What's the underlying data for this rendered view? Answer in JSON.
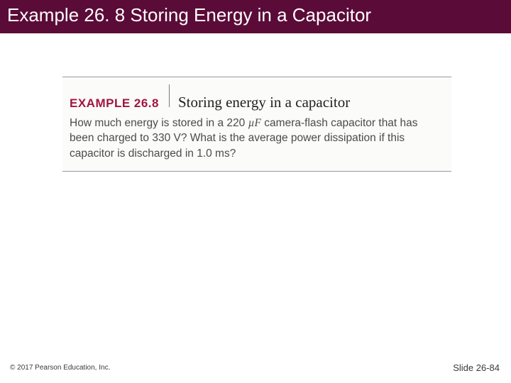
{
  "colors": {
    "title_bg": "#5b0b37",
    "title_fg": "#ffffff",
    "box_border": "#9a9a9a",
    "example_label": "#a0163f",
    "example_title": "#222222",
    "body_text": "#4b4b4b",
    "footer": "#3a3a3a"
  },
  "title": "Example 26. 8 Storing Energy in a Capacitor",
  "example": {
    "label": "EXAMPLE 26.8",
    "title": "Storing energy in a capacitor",
    "body_pre": "How much energy is stored in a 220 ",
    "body_unit": "µF",
    "body_post": " camera-flash capacitor that has been charged to 330 V? What is the average power dissipation if this capacitor is discharged in 1.0 ms?"
  },
  "footer": {
    "copyright": "© 2017 Pearson Education, Inc.",
    "slide": "Slide 26-84"
  }
}
